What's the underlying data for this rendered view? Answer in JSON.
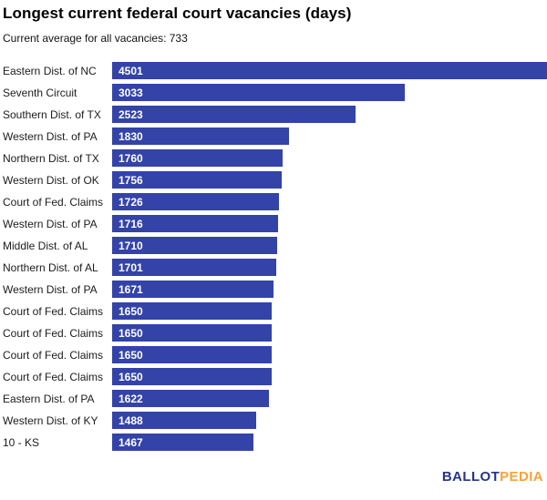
{
  "chart_data": {
    "type": "bar",
    "orientation": "horizontal",
    "title": "Longest current federal court vacancies (days)",
    "subtitle": "Current average for all vacancies: 733",
    "categories": [
      "Eastern Dist. of NC",
      "Seventh Circuit",
      "Southern Dist. of TX",
      "Western Dist. of PA",
      "Northern Dist. of TX",
      "Western Dist. of OK",
      "Court of Fed. Claims",
      "Western Dist. of PA",
      "Middle Dist. of AL",
      "Northern Dist. of AL",
      "Western Dist. of PA",
      "Court of Fed. Claims",
      "Court of Fed. Claims",
      "Court of Fed. Claims",
      "Court of Fed. Claims",
      "Eastern Dist. of PA",
      "Western Dist. of KY",
      "10 - KS"
    ],
    "values": [
      4501,
      3033,
      2523,
      1830,
      1760,
      1756,
      1726,
      1716,
      1710,
      1701,
      1671,
      1650,
      1650,
      1650,
      1650,
      1622,
      1488,
      1467
    ],
    "xlim": [
      0,
      4501
    ],
    "value_labels_shown": true,
    "grid": false,
    "legend": "none",
    "bar_color": "#3443A8",
    "value_label_color": "#FFFFFF"
  },
  "branding": {
    "logo_part1": "BALLOT",
    "logo_part2": "PEDIA",
    "logo_part1_color": "#27348B",
    "logo_part2_color": "#F7A23B"
  }
}
